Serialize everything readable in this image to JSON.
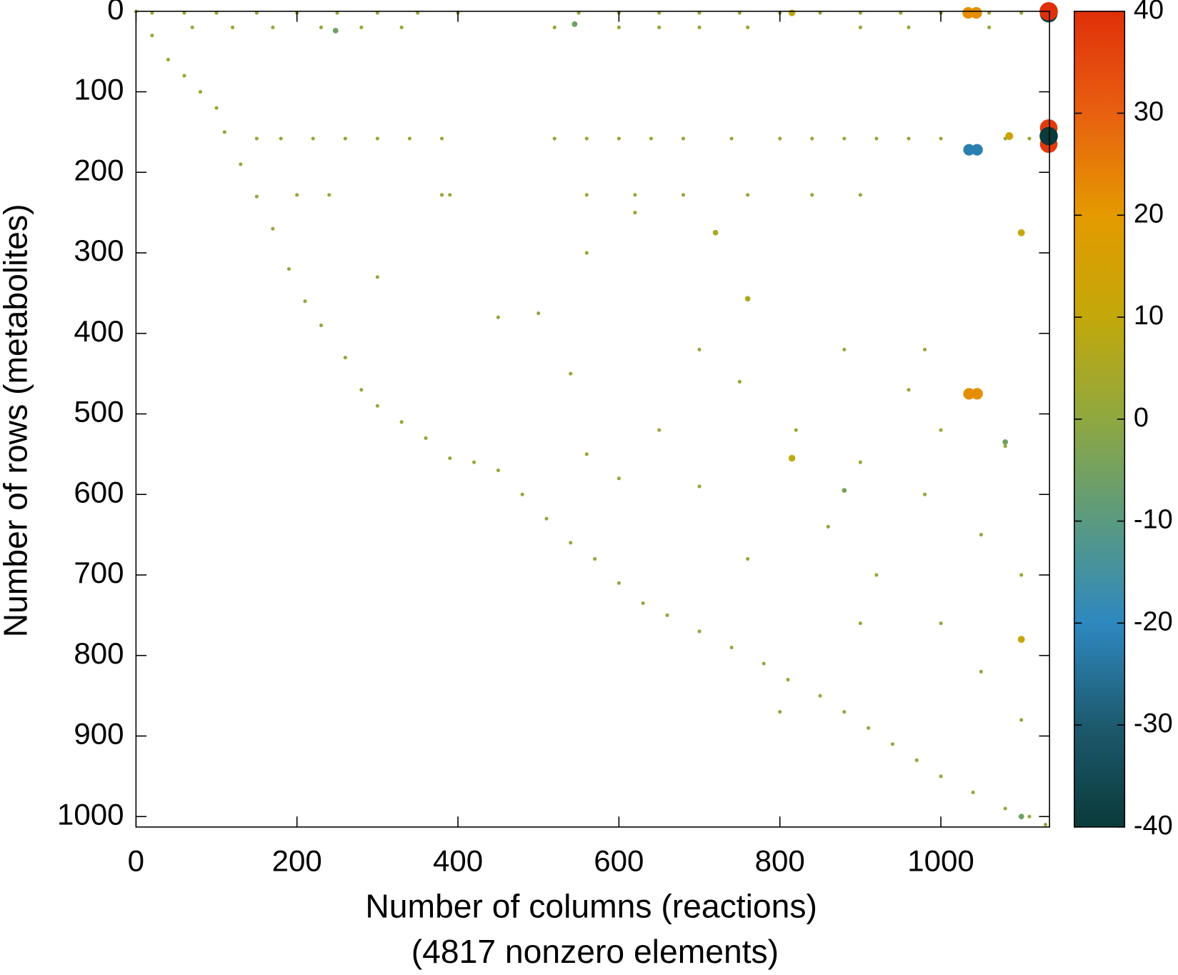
{
  "chart_data": {
    "type": "scatter",
    "xlabel": "Number of columns (reactions)",
    "annotation": "(4817 nonzero elements)",
    "ylabel": "Number of rows (metabolites)",
    "xlim": [
      0,
      1135
    ],
    "ylim": [
      0,
      1013
    ],
    "y_inverted": true,
    "xticks": [
      0,
      200,
      400,
      600,
      800,
      1000
    ],
    "yticks": [
      0,
      100,
      200,
      300,
      400,
      500,
      600,
      700,
      800,
      900,
      1000
    ],
    "zlim": [
      -40,
      40
    ],
    "zticks": [
      -40,
      -30,
      -20,
      -10,
      0,
      10,
      20,
      30,
      40
    ],
    "colormap": [
      {
        "value": -40,
        "color": "#0a3a3a"
      },
      {
        "value": -30,
        "color": "#1d5a6e"
      },
      {
        "value": -20,
        "color": "#2e88c0"
      },
      {
        "value": -10,
        "color": "#5a9a80"
      },
      {
        "value": 0,
        "color": "#8fa840"
      },
      {
        "value": 10,
        "color": "#c3a80a"
      },
      {
        "value": 20,
        "color": "#e49a00"
      },
      {
        "value": 30,
        "color": "#e86010"
      },
      {
        "value": 40,
        "color": "#e0300a"
      }
    ],
    "x": [
      0,
      20,
      40,
      60,
      80,
      100,
      110,
      130,
      150,
      170,
      190,
      210,
      230,
      260,
      280,
      300,
      330,
      360,
      390,
      420,
      450,
      480,
      510,
      540,
      570,
      600,
      630,
      660,
      700,
      740,
      780,
      810,
      850,
      880,
      910,
      940,
      970,
      1000,
      1040,
      1080,
      1110,
      1130,
      20,
      60,
      100,
      150,
      200,
      250,
      300,
      350,
      400,
      550,
      600,
      650,
      700,
      750,
      800,
      850,
      900,
      950,
      1000,
      1060,
      1100,
      70,
      120,
      170,
      230,
      280,
      330,
      520,
      600,
      650,
      700,
      760,
      900,
      960,
      1060,
      150,
      180,
      220,
      260,
      300,
      340,
      380,
      520,
      560,
      600,
      640,
      680,
      740,
      800,
      840,
      880,
      920,
      960,
      1000,
      1080,
      1110,
      200,
      240,
      380,
      390,
      560,
      620,
      680,
      760,
      840,
      900,
      300,
      450,
      500,
      560,
      620,
      700,
      750,
      820,
      900,
      980,
      1050,
      1100,
      650,
      700,
      860,
      920,
      1000,
      1050,
      1100,
      800,
      600,
      560,
      540,
      880,
      980,
      960,
      1000,
      1080,
      760,
      900,
      1034,
      1044,
      1134,
      1134,
      1134,
      1134,
      1134,
      1035,
      1045,
      1035,
      1045,
      248,
      545,
      815,
      815,
      1085,
      1100,
      1100,
      1080,
      880,
      1100,
      720,
      760
    ],
    "y": [
      0,
      30,
      60,
      80,
      100,
      120,
      150,
      190,
      230,
      270,
      320,
      360,
      390,
      430,
      470,
      490,
      510,
      530,
      555,
      560,
      570,
      600,
      630,
      660,
      680,
      710,
      735,
      750,
      770,
      790,
      810,
      830,
      850,
      870,
      890,
      910,
      930,
      950,
      970,
      990,
      1000,
      1010,
      2,
      2,
      2,
      2,
      2,
      2,
      2,
      2,
      2,
      2,
      2,
      2,
      2,
      2,
      2,
      2,
      2,
      2,
      2,
      2,
      2,
      20,
      20,
      20,
      20,
      20,
      20,
      20,
      20,
      20,
      20,
      20,
      20,
      20,
      20,
      158,
      158,
      158,
      158,
      158,
      158,
      158,
      158,
      158,
      158,
      158,
      158,
      158,
      158,
      158,
      158,
      158,
      158,
      158,
      158,
      158,
      228,
      228,
      228,
      228,
      228,
      228,
      228,
      228,
      228,
      228,
      330,
      380,
      375,
      300,
      250,
      420,
      460,
      520,
      560,
      600,
      650,
      700,
      520,
      590,
      640,
      700,
      760,
      820,
      880,
      870,
      580,
      550,
      450,
      420,
      420,
      470,
      520,
      540,
      680,
      760,
      2,
      2,
      0,
      3,
      145,
      155,
      165,
      172,
      172,
      475,
      475,
      24,
      16,
      2,
      555,
      155,
      275,
      780,
      535,
      595,
      1000,
      275,
      357
    ],
    "values": [
      1,
      1,
      1,
      1,
      1,
      1,
      1,
      1,
      1,
      1,
      1,
      1,
      1,
      1,
      1,
      1,
      1,
      1,
      1,
      1,
      1,
      1,
      1,
      1,
      1,
      1,
      1,
      1,
      1,
      1,
      1,
      1,
      1,
      1,
      1,
      1,
      1,
      1,
      1,
      1,
      1,
      1,
      1,
      1,
      1,
      1,
      1,
      1,
      1,
      1,
      1,
      1,
      1,
      1,
      1,
      1,
      1,
      1,
      1,
      1,
      1,
      1,
      1,
      1,
      1,
      1,
      1,
      1,
      1,
      1,
      1,
      1,
      1,
      1,
      1,
      1,
      1,
      1,
      1,
      1,
      1,
      1,
      1,
      1,
      1,
      1,
      1,
      1,
      1,
      1,
      1,
      1,
      1,
      1,
      1,
      1,
      1,
      1,
      1,
      1,
      1,
      1,
      1,
      1,
      1,
      1,
      1,
      1,
      1,
      1,
      1,
      1,
      1,
      1,
      1,
      1,
      1,
      1,
      1,
      1,
      1,
      1,
      1,
      1,
      1,
      1,
      1,
      1,
      1,
      1,
      1,
      1,
      1,
      1,
      1,
      1,
      1,
      1,
      22,
      22,
      40,
      -38,
      38,
      -40,
      38,
      -22,
      -22,
      22,
      22,
      -6,
      -6,
      9,
      9,
      12,
      10,
      10,
      -6,
      -4,
      -6,
      6,
      6
    ]
  }
}
